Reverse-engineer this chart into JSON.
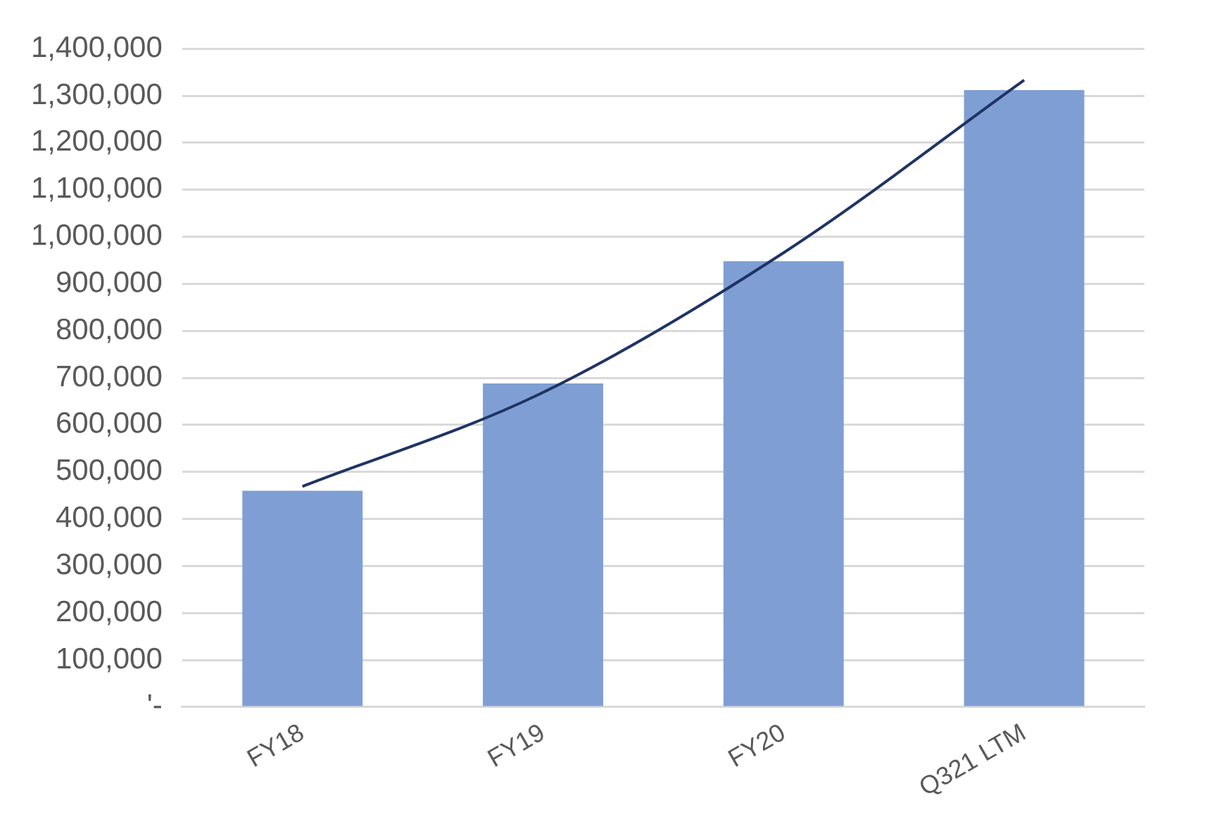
{
  "chart_data": {
    "type": "bar",
    "categories": [
      "FY18",
      "FY19",
      "FY20",
      "Q321 LTM"
    ],
    "series": [
      {
        "color": "#7f9fd4",
        "values": [
          460000,
          688000,
          948000,
          1312000
        ]
      },
      {
        "type": "line",
        "color": "#1f3464",
        "values": [
          469000,
          669000,
          966000,
          1333000
        ]
      }
    ],
    "ylim": [
      0,
      1400000
    ],
    "yticks": [
      {
        "value": 0,
        "label": "'-"
      },
      {
        "value": 100000,
        "label": "100,000"
      },
      {
        "value": 200000,
        "label": "200,000"
      },
      {
        "value": 300000,
        "label": "300,000"
      },
      {
        "value": 400000,
        "label": "400,000"
      },
      {
        "value": 500000,
        "label": "500,000"
      },
      {
        "value": 600000,
        "label": "600,000"
      },
      {
        "value": 700000,
        "label": "700,000"
      },
      {
        "value": 800000,
        "label": "800,000"
      },
      {
        "value": 900000,
        "label": "900,000"
      },
      {
        "value": 1000000,
        "label": "1,000,000"
      },
      {
        "value": 1100000,
        "label": "1,100,000"
      },
      {
        "value": 1200000,
        "label": "1,200,000"
      },
      {
        "value": 1300000,
        "label": "1,300,000"
      },
      {
        "value": 1400000,
        "label": "1,400,000"
      }
    ],
    "grid": "y",
    "legend": false,
    "marker": "none",
    "line_style": "solid"
  }
}
